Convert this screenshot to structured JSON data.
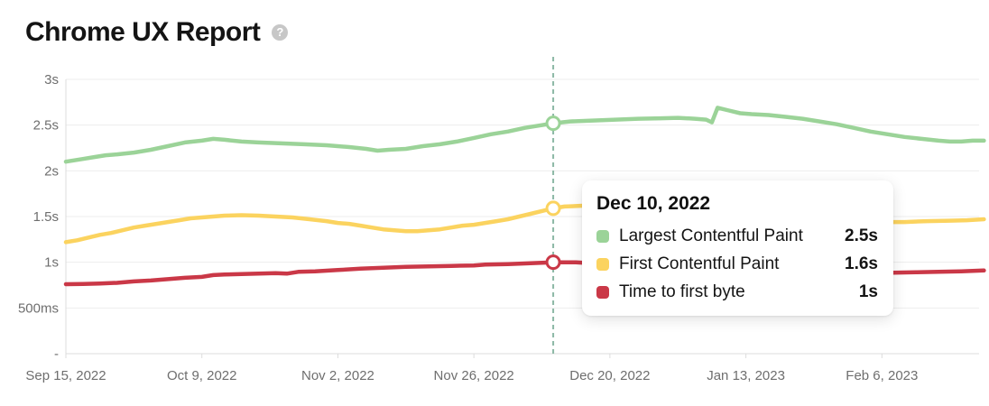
{
  "header": {
    "title": "Chrome UX Report",
    "help_glyph": "?"
  },
  "tooltip": {
    "title": "Dec 10, 2022",
    "rows": [
      {
        "label": "Largest Contentful Paint",
        "value": "2.5s",
        "color": "#9bd398"
      },
      {
        "label": "First Contentful Paint",
        "value": "1.6s",
        "color": "#fbd35f"
      },
      {
        "label": "Time to first byte",
        "value": "1s",
        "color": "#ca3847"
      }
    ]
  },
  "chart_data": {
    "type": "line",
    "title": "Chrome UX Report",
    "xlabel": "",
    "ylabel": "",
    "ylim": [
      0,
      3
    ],
    "grid": "horizontal",
    "x_unit": "days since Sep 15, 2022",
    "x_ticks": [
      {
        "label": "Sep 15, 2022",
        "day": 0
      },
      {
        "label": "Oct 9, 2022",
        "day": 24
      },
      {
        "label": "Nov 2, 2022",
        "day": 48
      },
      {
        "label": "Nov 26, 2022",
        "day": 72
      },
      {
        "label": "Dec 20, 2022",
        "day": 96
      },
      {
        "label": "Jan 13, 2023",
        "day": 120
      },
      {
        "label": "Feb 6, 2023",
        "day": 144
      }
    ],
    "y_ticks": [
      {
        "label": "3s",
        "value": 3
      },
      {
        "label": "2.5s",
        "value": 2.5
      },
      {
        "label": "2s",
        "value": 2
      },
      {
        "label": "1.5s",
        "value": 1.5
      },
      {
        "label": "1s",
        "value": 1
      },
      {
        "label": "500ms",
        "value": 0.5
      },
      {
        "label": "-",
        "value": 0
      }
    ],
    "cursor": {
      "date_label": "Dec 10, 2022",
      "day": 86,
      "color": "#8cb8a5"
    },
    "series": [
      {
        "id": "lcp",
        "name": "Largest Contentful Paint",
        "color": "#9bd398",
        "value_at_cursor": 2.5,
        "points": [
          [
            0,
            2.1
          ],
          [
            3,
            2.13
          ],
          [
            5,
            2.15
          ],
          [
            7,
            2.17
          ],
          [
            9,
            2.18
          ],
          [
            12,
            2.2
          ],
          [
            15,
            2.23
          ],
          [
            18,
            2.27
          ],
          [
            21,
            2.31
          ],
          [
            24,
            2.33
          ],
          [
            26,
            2.35
          ],
          [
            28,
            2.34
          ],
          [
            31,
            2.32
          ],
          [
            34,
            2.31
          ],
          [
            38,
            2.3
          ],
          [
            42,
            2.29
          ],
          [
            46,
            2.28
          ],
          [
            50,
            2.26
          ],
          [
            53,
            2.24
          ],
          [
            55,
            2.22
          ],
          [
            57,
            2.23
          ],
          [
            60,
            2.24
          ],
          [
            63,
            2.27
          ],
          [
            66,
            2.29
          ],
          [
            69,
            2.32
          ],
          [
            72,
            2.36
          ],
          [
            75,
            2.4
          ],
          [
            78,
            2.43
          ],
          [
            81,
            2.47
          ],
          [
            84,
            2.5
          ],
          [
            86,
            2.52
          ],
          [
            89,
            2.54
          ],
          [
            93,
            2.55
          ],
          [
            97,
            2.56
          ],
          [
            101,
            2.57
          ],
          [
            105,
            2.575
          ],
          [
            108,
            2.58
          ],
          [
            111,
            2.57
          ],
          [
            113,
            2.56
          ],
          [
            114,
            2.53
          ],
          [
            115,
            2.69
          ],
          [
            117,
            2.66
          ],
          [
            119,
            2.63
          ],
          [
            121,
            2.62
          ],
          [
            124,
            2.61
          ],
          [
            127,
            2.59
          ],
          [
            130,
            2.57
          ],
          [
            133,
            2.54
          ],
          [
            136,
            2.51
          ],
          [
            139,
            2.47
          ],
          [
            142,
            2.43
          ],
          [
            145,
            2.4
          ],
          [
            148,
            2.37
          ],
          [
            151,
            2.35
          ],
          [
            154,
            2.33
          ],
          [
            156,
            2.32
          ],
          [
            158,
            2.32
          ],
          [
            160,
            2.33
          ],
          [
            162,
            2.33
          ]
        ]
      },
      {
        "id": "fcp",
        "name": "First Contentful Paint",
        "color": "#fbd35f",
        "value_at_cursor": 1.6,
        "points": [
          [
            0,
            1.22
          ],
          [
            2,
            1.24
          ],
          [
            4,
            1.27
          ],
          [
            6,
            1.3
          ],
          [
            8,
            1.32
          ],
          [
            10,
            1.35
          ],
          [
            12,
            1.38
          ],
          [
            14,
            1.4
          ],
          [
            16,
            1.42
          ],
          [
            18,
            1.44
          ],
          [
            20,
            1.46
          ],
          [
            22,
            1.48
          ],
          [
            24,
            1.49
          ],
          [
            26,
            1.5
          ],
          [
            28,
            1.51
          ],
          [
            31,
            1.515
          ],
          [
            34,
            1.51
          ],
          [
            37,
            1.5
          ],
          [
            40,
            1.49
          ],
          [
            43,
            1.47
          ],
          [
            46,
            1.45
          ],
          [
            48,
            1.43
          ],
          [
            50,
            1.42
          ],
          [
            52,
            1.4
          ],
          [
            54,
            1.38
          ],
          [
            56,
            1.36
          ],
          [
            58,
            1.35
          ],
          [
            60,
            1.34
          ],
          [
            62,
            1.34
          ],
          [
            64,
            1.35
          ],
          [
            66,
            1.36
          ],
          [
            68,
            1.38
          ],
          [
            70,
            1.4
          ],
          [
            72,
            1.41
          ],
          [
            74,
            1.43
          ],
          [
            76,
            1.45
          ],
          [
            78,
            1.47
          ],
          [
            80,
            1.5
          ],
          [
            82,
            1.53
          ],
          [
            84,
            1.56
          ],
          [
            86,
            1.59
          ],
          [
            88,
            1.61
          ],
          [
            92,
            1.62
          ],
          [
            96,
            1.615
          ],
          [
            100,
            1.6
          ],
          [
            104,
            1.58
          ],
          [
            108,
            1.55
          ],
          [
            112,
            1.53
          ],
          [
            116,
            1.51
          ],
          [
            120,
            1.49
          ],
          [
            124,
            1.47
          ],
          [
            128,
            1.46
          ],
          [
            132,
            1.45
          ],
          [
            136,
            1.44
          ],
          [
            140,
            1.435
          ],
          [
            144,
            1.44
          ],
          [
            148,
            1.44
          ],
          [
            152,
            1.45
          ],
          [
            156,
            1.455
          ],
          [
            159,
            1.46
          ],
          [
            162,
            1.47
          ]
        ]
      },
      {
        "id": "ttfb",
        "name": "Time to first byte",
        "color": "#ca3847",
        "value_at_cursor": 1.0,
        "points": [
          [
            0,
            0.76
          ],
          [
            3,
            0.762
          ],
          [
            6,
            0.768
          ],
          [
            9,
            0.775
          ],
          [
            12,
            0.79
          ],
          [
            15,
            0.8
          ],
          [
            18,
            0.815
          ],
          [
            21,
            0.83
          ],
          [
            24,
            0.84
          ],
          [
            26,
            0.86
          ],
          [
            28,
            0.865
          ],
          [
            31,
            0.87
          ],
          [
            34,
            0.875
          ],
          [
            37,
            0.88
          ],
          [
            39,
            0.875
          ],
          [
            41,
            0.895
          ],
          [
            44,
            0.9
          ],
          [
            48,
            0.915
          ],
          [
            52,
            0.93
          ],
          [
            56,
            0.94
          ],
          [
            60,
            0.95
          ],
          [
            64,
            0.955
          ],
          [
            68,
            0.96
          ],
          [
            72,
            0.965
          ],
          [
            74,
            0.975
          ],
          [
            78,
            0.98
          ],
          [
            82,
            0.99
          ],
          [
            86,
            1.0
          ],
          [
            90,
            1.0
          ],
          [
            94,
            0.985
          ],
          [
            98,
            0.965
          ],
          [
            102,
            0.945
          ],
          [
            106,
            0.925
          ],
          [
            110,
            0.91
          ],
          [
            114,
            0.9
          ],
          [
            118,
            0.895
          ],
          [
            122,
            0.89
          ],
          [
            126,
            0.885
          ],
          [
            130,
            0.88
          ],
          [
            134,
            0.878
          ],
          [
            138,
            0.878
          ],
          [
            142,
            0.88
          ],
          [
            146,
            0.885
          ],
          [
            150,
            0.89
          ],
          [
            154,
            0.895
          ],
          [
            158,
            0.9
          ],
          [
            162,
            0.91
          ]
        ]
      }
    ]
  }
}
